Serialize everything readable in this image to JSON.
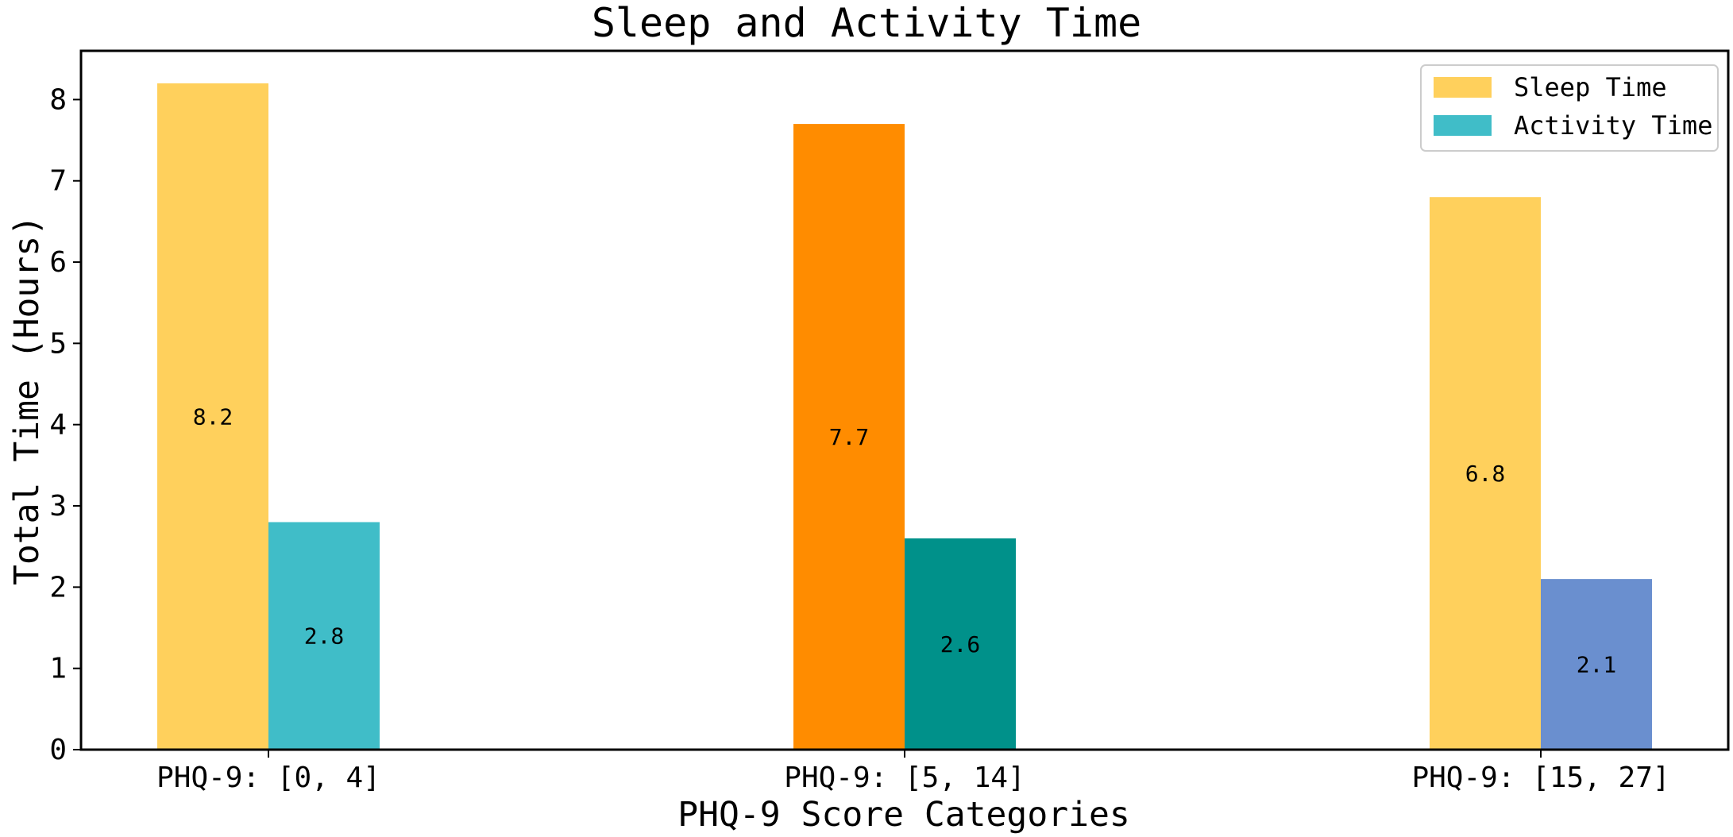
{
  "chart_data": {
    "type": "bar",
    "title": "Sleep and Activity Time",
    "xlabel": "PHQ-9 Score Categories",
    "ylabel": "Total Time (Hours)",
    "categories": [
      "PHQ-9: [0, 4]",
      "PHQ-9: [5, 14]",
      "PHQ-9: [15, 27]"
    ],
    "ylim": [
      0,
      8.6
    ],
    "yticks": [
      "0",
      "1",
      "2",
      "3",
      "4",
      "5",
      "6",
      "7",
      "8"
    ],
    "grid": false,
    "legend_position": "top-right",
    "series": [
      {
        "name": "Sleep Time",
        "values": [
          8.2,
          7.7,
          6.8
        ],
        "labels": [
          "8.2",
          "7.7",
          "6.8"
        ],
        "colors": [
          "#FFD05C",
          "#FF8C00",
          "#FFD05C"
        ]
      },
      {
        "name": "Activity Time",
        "values": [
          2.8,
          2.6,
          2.1
        ],
        "labels": [
          "2.8",
          "2.6",
          "2.1"
        ],
        "colors": [
          "#40BDC8",
          "#00918A",
          "#6A8FCF"
        ]
      }
    ],
    "legend": [
      {
        "label": "Sleep Time",
        "color": "#FFD05C"
      },
      {
        "label": "Activity Time",
        "color": "#40BDC8"
      }
    ]
  }
}
